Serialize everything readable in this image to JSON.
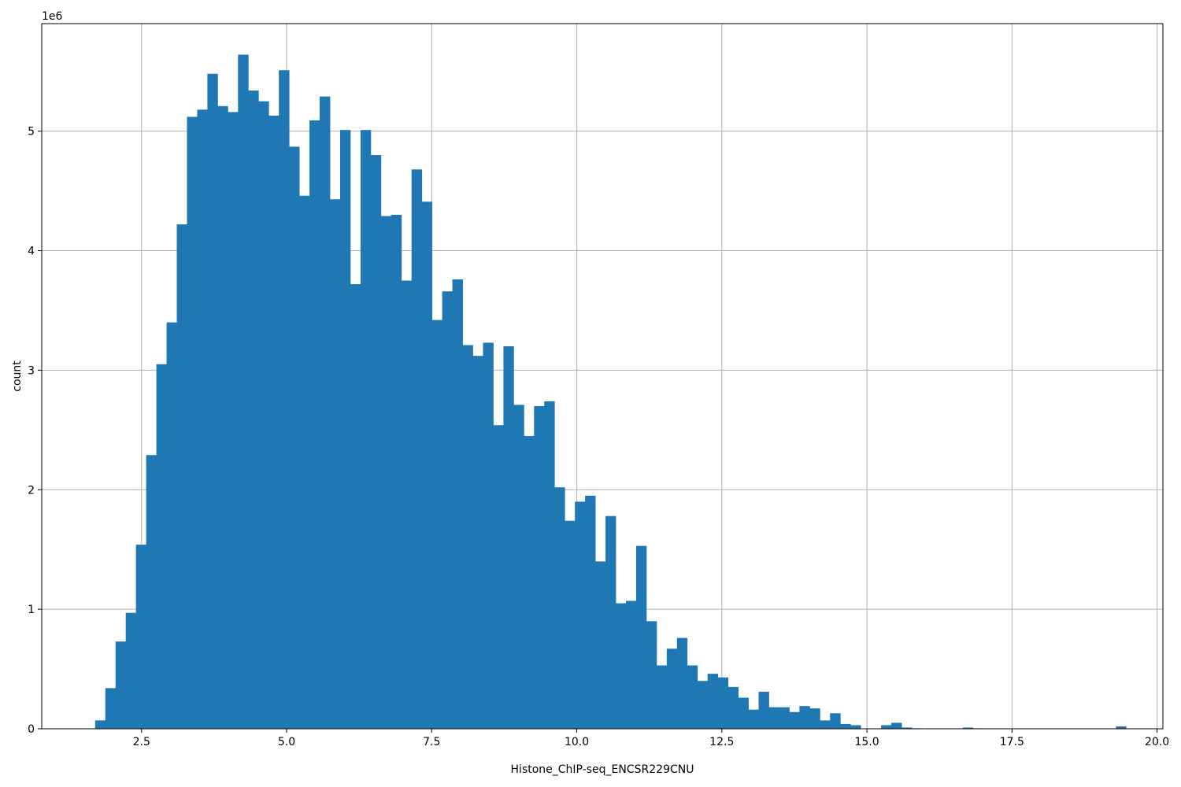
{
  "chart_data": {
    "type": "bar",
    "title": "",
    "xlabel": "Histone_ChIP-seq_ENCSR229CNU",
    "ylabel": "count",
    "y_offset_label": "1e6",
    "xlim": [
      0.78,
      20.1
    ],
    "ylim": [
      0,
      5.9
    ],
    "x_ticks": [
      2.5,
      5.0,
      7.5,
      10.0,
      12.5,
      15.0,
      17.5,
      20.0
    ],
    "x_tick_labels": [
      "2.5",
      "5.0",
      "7.5",
      "10.0",
      "12.5",
      "15.0",
      "17.5",
      "20.0"
    ],
    "y_ticks": [
      0,
      1,
      2,
      3,
      4,
      5
    ],
    "y_tick_labels": [
      "0",
      "1",
      "2",
      "3",
      "4",
      "5"
    ],
    "grid": true,
    "bar_color": "#1f77b4",
    "bin_start": 1.7,
    "bin_width": 0.1759,
    "values": [
      0.07,
      0.34,
      0.73,
      0.97,
      1.54,
      2.29,
      3.05,
      3.4,
      4.22,
      5.12,
      5.18,
      5.48,
      5.21,
      5.16,
      5.64,
      5.34,
      5.25,
      5.13,
      5.51,
      4.87,
      4.46,
      5.09,
      5.29,
      4.43,
      5.01,
      3.72,
      5.01,
      4.8,
      4.29,
      4.3,
      3.75,
      4.68,
      4.41,
      3.42,
      3.66,
      3.76,
      3.21,
      3.12,
      3.23,
      2.54,
      3.2,
      2.71,
      2.45,
      2.7,
      2.74,
      2.02,
      1.74,
      1.9,
      1.95,
      1.4,
      1.78,
      1.05,
      1.07,
      1.53,
      0.9,
      0.53,
      0.67,
      0.76,
      0.53,
      0.4,
      0.46,
      0.43,
      0.35,
      0.26,
      0.16,
      0.31,
      0.18,
      0.18,
      0.14,
      0.19,
      0.17,
      0.07,
      0.13,
      0.04,
      0.03,
      0.0,
      0.0,
      0.03,
      0.05,
      0.01,
      0.004,
      0.002,
      0.0,
      0.0,
      0.0,
      0.01,
      0.004,
      0.0,
      0.0,
      0.0,
      0.0,
      0.0,
      0.0,
      0.0,
      0.0,
      0.0,
      0.0,
      0.0,
      0.0,
      0.0,
      0.02
    ]
  }
}
